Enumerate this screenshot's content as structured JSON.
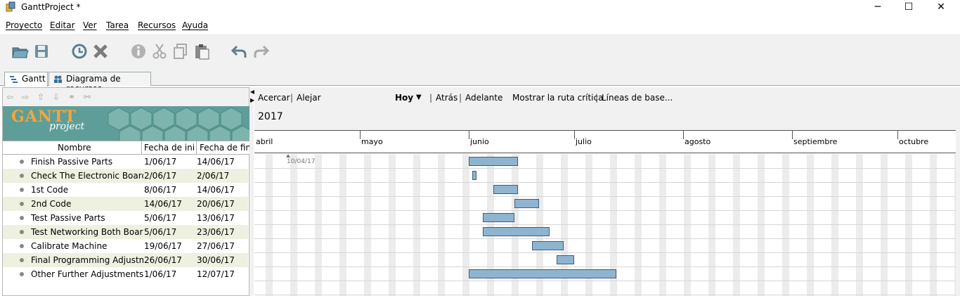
{
  "window": {
    "title": "GanttProject *"
  },
  "menu": [
    "Proyecto",
    "Editar",
    "Ver",
    "Tarea",
    "Recursos",
    "Ayuda"
  ],
  "toolbar": {
    "icons": [
      "open-folder-icon",
      "save-icon",
      "history-icon",
      "delete-icon",
      "info-icon",
      "cut-icon",
      "copy-icon",
      "paste-icon",
      "undo-icon",
      "redo-icon"
    ]
  },
  "tabs": [
    {
      "label": "Gantt",
      "icon": "gantt-icon",
      "active": true
    },
    {
      "label": "Diagrama de recursos",
      "icon": "resources-icon",
      "active": false
    }
  ],
  "logo": {
    "title": "GANTT",
    "subtitle": "project"
  },
  "table": {
    "columns": [
      "Nombre",
      "Fecha de ini...",
      "Fecha de fin"
    ],
    "rows": [
      {
        "name": "Finish Passive Parts",
        "start": "1/06/17",
        "end": "14/06/17"
      },
      {
        "name": "Check The Electronic Boards",
        "start": "2/06/17",
        "end": "2/06/17"
      },
      {
        "name": "1st Code",
        "start": "8/06/17",
        "end": "14/06/17"
      },
      {
        "name": "2nd Code",
        "start": "14/06/17",
        "end": "20/06/17"
      },
      {
        "name": "Test Passive Parts",
        "start": "5/06/17",
        "end": "13/06/17"
      },
      {
        "name": "Test Networking Both Boards",
        "start": "5/06/17",
        "end": "23/06/17"
      },
      {
        "name": "Calibrate Machine",
        "start": "19/06/17",
        "end": "27/06/17"
      },
      {
        "name": "Final Programming Adjustm...",
        "start": "26/06/17",
        "end": "30/06/17"
      },
      {
        "name": "Other Further Adjustments ...",
        "start": "1/06/17",
        "end": "12/07/17"
      }
    ]
  },
  "chart_toolbar": {
    "zoom_in": "Acercar",
    "zoom_out": "Alejar",
    "today": "Hoy",
    "back": "Atrás",
    "forward": "Adelante",
    "critical_path": "Mostrar la ruta crítica",
    "baselines": "Líneas de base...",
    "sep": "|"
  },
  "timeline": {
    "year": "2017",
    "months": [
      "abril",
      "mayo",
      "junio",
      "julio",
      "agosto",
      "septiembre",
      "octubre"
    ],
    "today_marker": "10/04/17"
  },
  "colors": {
    "bar_fill": "#8fb4cf",
    "bar_border": "#3b5f7a",
    "logo_bg": "#5f9e98",
    "logo_text": "#f7a53b"
  }
}
